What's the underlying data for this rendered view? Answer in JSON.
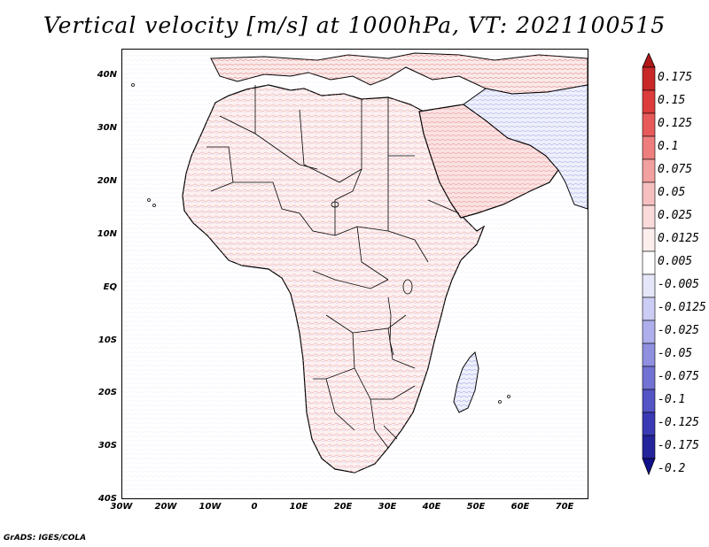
{
  "title": "Vertical velocity [m/s] at 1000hPa, VT: 2021100515",
  "footer": "GrADS: IGES/COLA",
  "y_axis": {
    "ticks": [
      "40N",
      "30N",
      "20N",
      "10N",
      "EQ",
      "10S",
      "20S",
      "30S",
      "40S"
    ]
  },
  "x_axis": {
    "ticks": [
      "30W",
      "20W",
      "10W",
      "0",
      "10E",
      "20E",
      "30E",
      "40E",
      "50E",
      "60E",
      "70E"
    ]
  },
  "colorbar": {
    "levels": [
      "0.175",
      "0.15",
      "0.125",
      "0.1",
      "0.075",
      "0.05",
      "0.025",
      "0.0125",
      "0.005",
      "-0.005",
      "-0.0125",
      "-0.025",
      "-0.05",
      "-0.075",
      "-0.1",
      "-0.125",
      "-0.175",
      "-0.2"
    ],
    "colors": [
      "#b01818",
      "#c82828",
      "#dc3c3c",
      "#e85a5a",
      "#ee7e7e",
      "#f2a0a0",
      "#f6c0c0",
      "#fadada",
      "#fdeeee",
      "#ffffff",
      "#e6e6fa",
      "#cccdf4",
      "#aeaeec",
      "#9090e0",
      "#7272d4",
      "#5454c4",
      "#3a3ab4",
      "#24249c",
      "#10108a"
    ]
  },
  "map": {
    "region": "Africa and surrounding regions",
    "lon_range": [
      -30,
      75
    ],
    "lat_range": [
      -40,
      45
    ]
  }
}
